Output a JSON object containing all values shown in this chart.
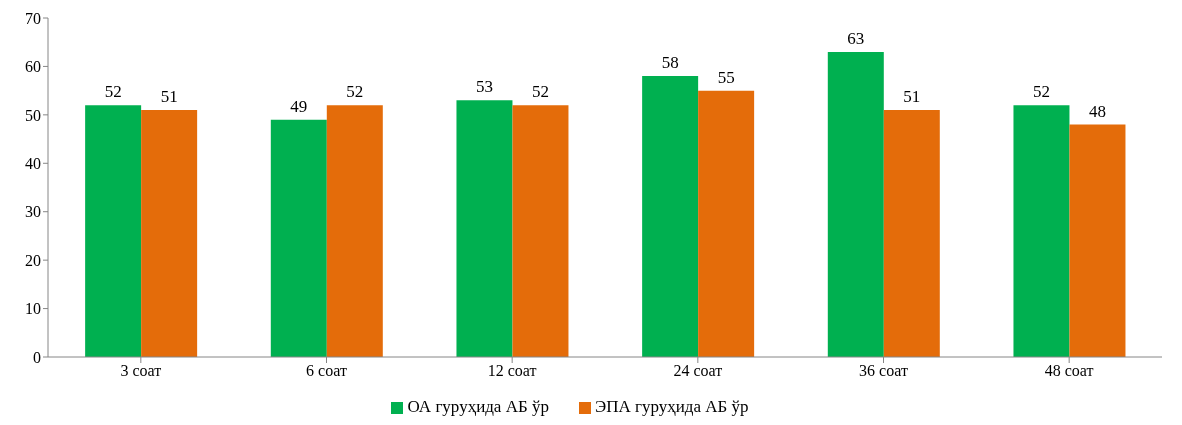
{
  "chart_data": {
    "type": "bar",
    "categories": [
      "3 соат",
      "6 соат",
      "12 соат",
      "24 соат",
      "36 соат",
      "48 соат"
    ],
    "series": [
      {
        "name": "ОА гуруҳида АБ ўр",
        "color": "#00b050",
        "values": [
          52,
          49,
          53,
          58,
          63,
          52
        ]
      },
      {
        "name": "ЭПА гуруҳида АБ ўр",
        "color": "#e46c0a",
        "values": [
          51,
          52,
          52,
          55,
          51,
          48
        ]
      }
    ],
    "ylim": [
      0,
      70
    ],
    "yticks": [
      0,
      10,
      20,
      30,
      40,
      50,
      60,
      70
    ],
    "grid": false,
    "legend": "bottom",
    "data_labels": true
  }
}
